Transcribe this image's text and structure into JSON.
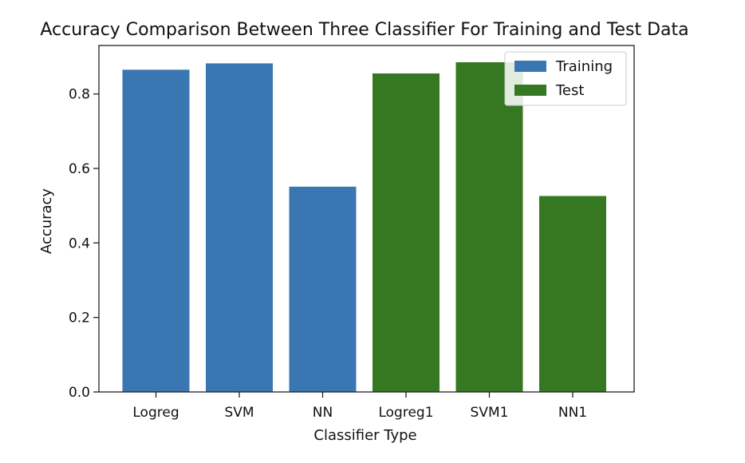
{
  "chart_data": {
    "type": "bar",
    "title": "Accuracy Comparison Between Three Classifier For Training and Test Data",
    "xlabel": "Classifier Type",
    "ylabel": "Accuracy",
    "ylim": [
      0,
      0.93
    ],
    "yticks": [
      "0.0",
      "0.2",
      "0.4",
      "0.6",
      "0.8"
    ],
    "ytick_values": [
      0.0,
      0.2,
      0.4,
      0.6,
      0.8
    ],
    "categories": [
      "Logreg",
      "SVM",
      "NN",
      "Logreg1",
      "SVM1",
      "NN1"
    ],
    "series": [
      {
        "name": "Training",
        "color": "#3a76b2",
        "values": [
          0.865,
          0.882,
          0.551,
          null,
          null,
          null
        ]
      },
      {
        "name": "Test",
        "color": "#367821",
        "values": [
          null,
          null,
          null,
          0.855,
          0.885,
          0.526
        ]
      }
    ],
    "legend_position": "top-right",
    "grid": false
  }
}
